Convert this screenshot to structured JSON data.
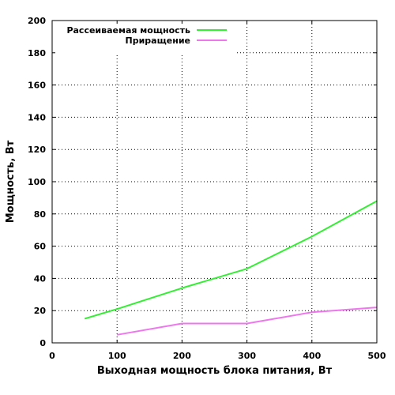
{
  "chart_data": {
    "type": "line",
    "title": "",
    "xlabel": "Выходная мощность блока питания, Вт",
    "ylabel": "Мощность, Вт",
    "xlim": [
      0,
      500
    ],
    "ylim": [
      0,
      200
    ],
    "xticks": [
      0,
      100,
      200,
      300,
      400,
      500
    ],
    "yticks": [
      0,
      20,
      40,
      60,
      80,
      100,
      120,
      140,
      160,
      180,
      200
    ],
    "grid": true,
    "legend_position": "top-left",
    "series": [
      {
        "name": "Рассеиваемая мощность",
        "color": "#33ee33",
        "x": [
          50,
          100,
          200,
          300,
          400,
          500
        ],
        "y": [
          15,
          21,
          34,
          46,
          66,
          88
        ]
      },
      {
        "name": "Приращение",
        "color": "#ee77ee",
        "x": [
          100,
          200,
          300,
          400,
          500
        ],
        "y": [
          5,
          12,
          12,
          19,
          22
        ]
      }
    ]
  }
}
